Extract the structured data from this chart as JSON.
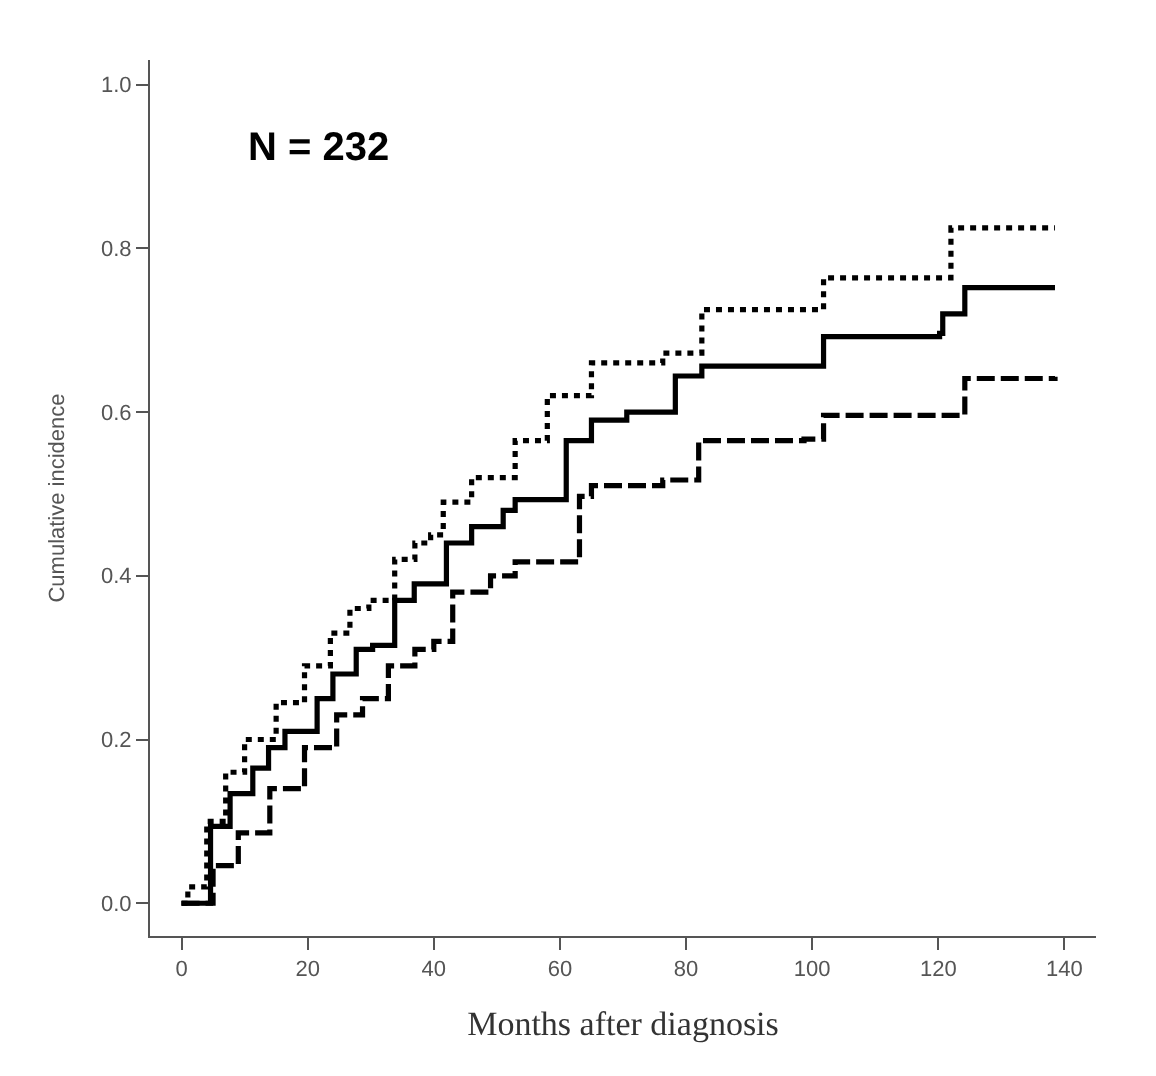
{
  "chart_data": {
    "type": "step",
    "xlabel": "Months after diagnosis",
    "ylabel": "Cumulative incidence",
    "annotations": [
      "N = 232"
    ],
    "xlim": [
      -5,
      145
    ],
    "xticks": [
      0,
      20,
      40,
      60,
      80,
      100,
      120,
      140
    ],
    "ylim": [
      -0.04,
      1.03
    ],
    "yticks": [
      {
        "value": 0,
        "label": "0.0"
      },
      0.2,
      0.4,
      0.6,
      0.8,
      {
        "value": 1,
        "label": "1.0"
      }
    ],
    "marker": "none",
    "series": [
      {
        "color": "#000000",
        "line_style": "dotted",
        "x": [
          0,
          1,
          4,
          7,
          10,
          15,
          19.5,
          23.6,
          26.7,
          29.7,
          33.8,
          37,
          39.5,
          41.5,
          46,
          52.9,
          58,
          65,
          76.3,
          82.5,
          98.7,
          101.8,
          120.2,
          122,
          138.5
        ],
        "values": [
          0,
          0.02,
          0.1,
          0.16,
          0.2,
          0.245,
          0.29,
          0.33,
          0.36,
          0.37,
          0.42,
          0.44,
          0.45,
          0.49,
          0.52,
          0.565,
          0.62,
          0.66,
          0.672,
          0.725,
          0.725,
          0.764,
          0.764,
          0.825,
          0.825
        ]
      },
      {
        "color": "#000000",
        "line_style": "solid",
        "x": [
          0,
          4.6,
          7.7,
          11.3,
          13.8,
          16.4,
          18.5,
          21.5,
          24,
          27.7,
          30.3,
          33.8,
          36.9,
          39.5,
          42,
          46,
          51,
          52.9,
          61,
          65,
          70.6,
          76.8,
          78.3,
          82.5,
          100.3,
          101.8,
          120.2,
          120.7,
          124.2,
          138.5
        ],
        "values": [
          0,
          0.094,
          0.134,
          0.165,
          0.19,
          0.21,
          0.21,
          0.25,
          0.28,
          0.31,
          0.315,
          0.37,
          0.39,
          0.39,
          0.44,
          0.46,
          0.48,
          0.493,
          0.565,
          0.59,
          0.6,
          0.6,
          0.644,
          0.656,
          0.656,
          0.692,
          0.696,
          0.72,
          0.752,
          0.752
        ]
      },
      {
        "color": "#000000",
        "line_style": "dashed",
        "x": [
          0,
          1,
          5,
          9,
          14,
          19.5,
          24.6,
          28.7,
          32.8,
          37,
          40,
          43,
          49,
          52.9,
          63.1,
          65,
          76.3,
          82,
          98.7,
          101.8,
          119,
          124.2,
          138.5
        ],
        "values": [
          0,
          0,
          0.046,
          0.086,
          0.14,
          0.19,
          0.23,
          0.25,
          0.29,
          0.31,
          0.32,
          0.38,
          0.4,
          0.417,
          0.497,
          0.51,
          0.517,
          0.565,
          0.567,
          0.596,
          0.596,
          0.641,
          0.643
        ]
      }
    ]
  }
}
